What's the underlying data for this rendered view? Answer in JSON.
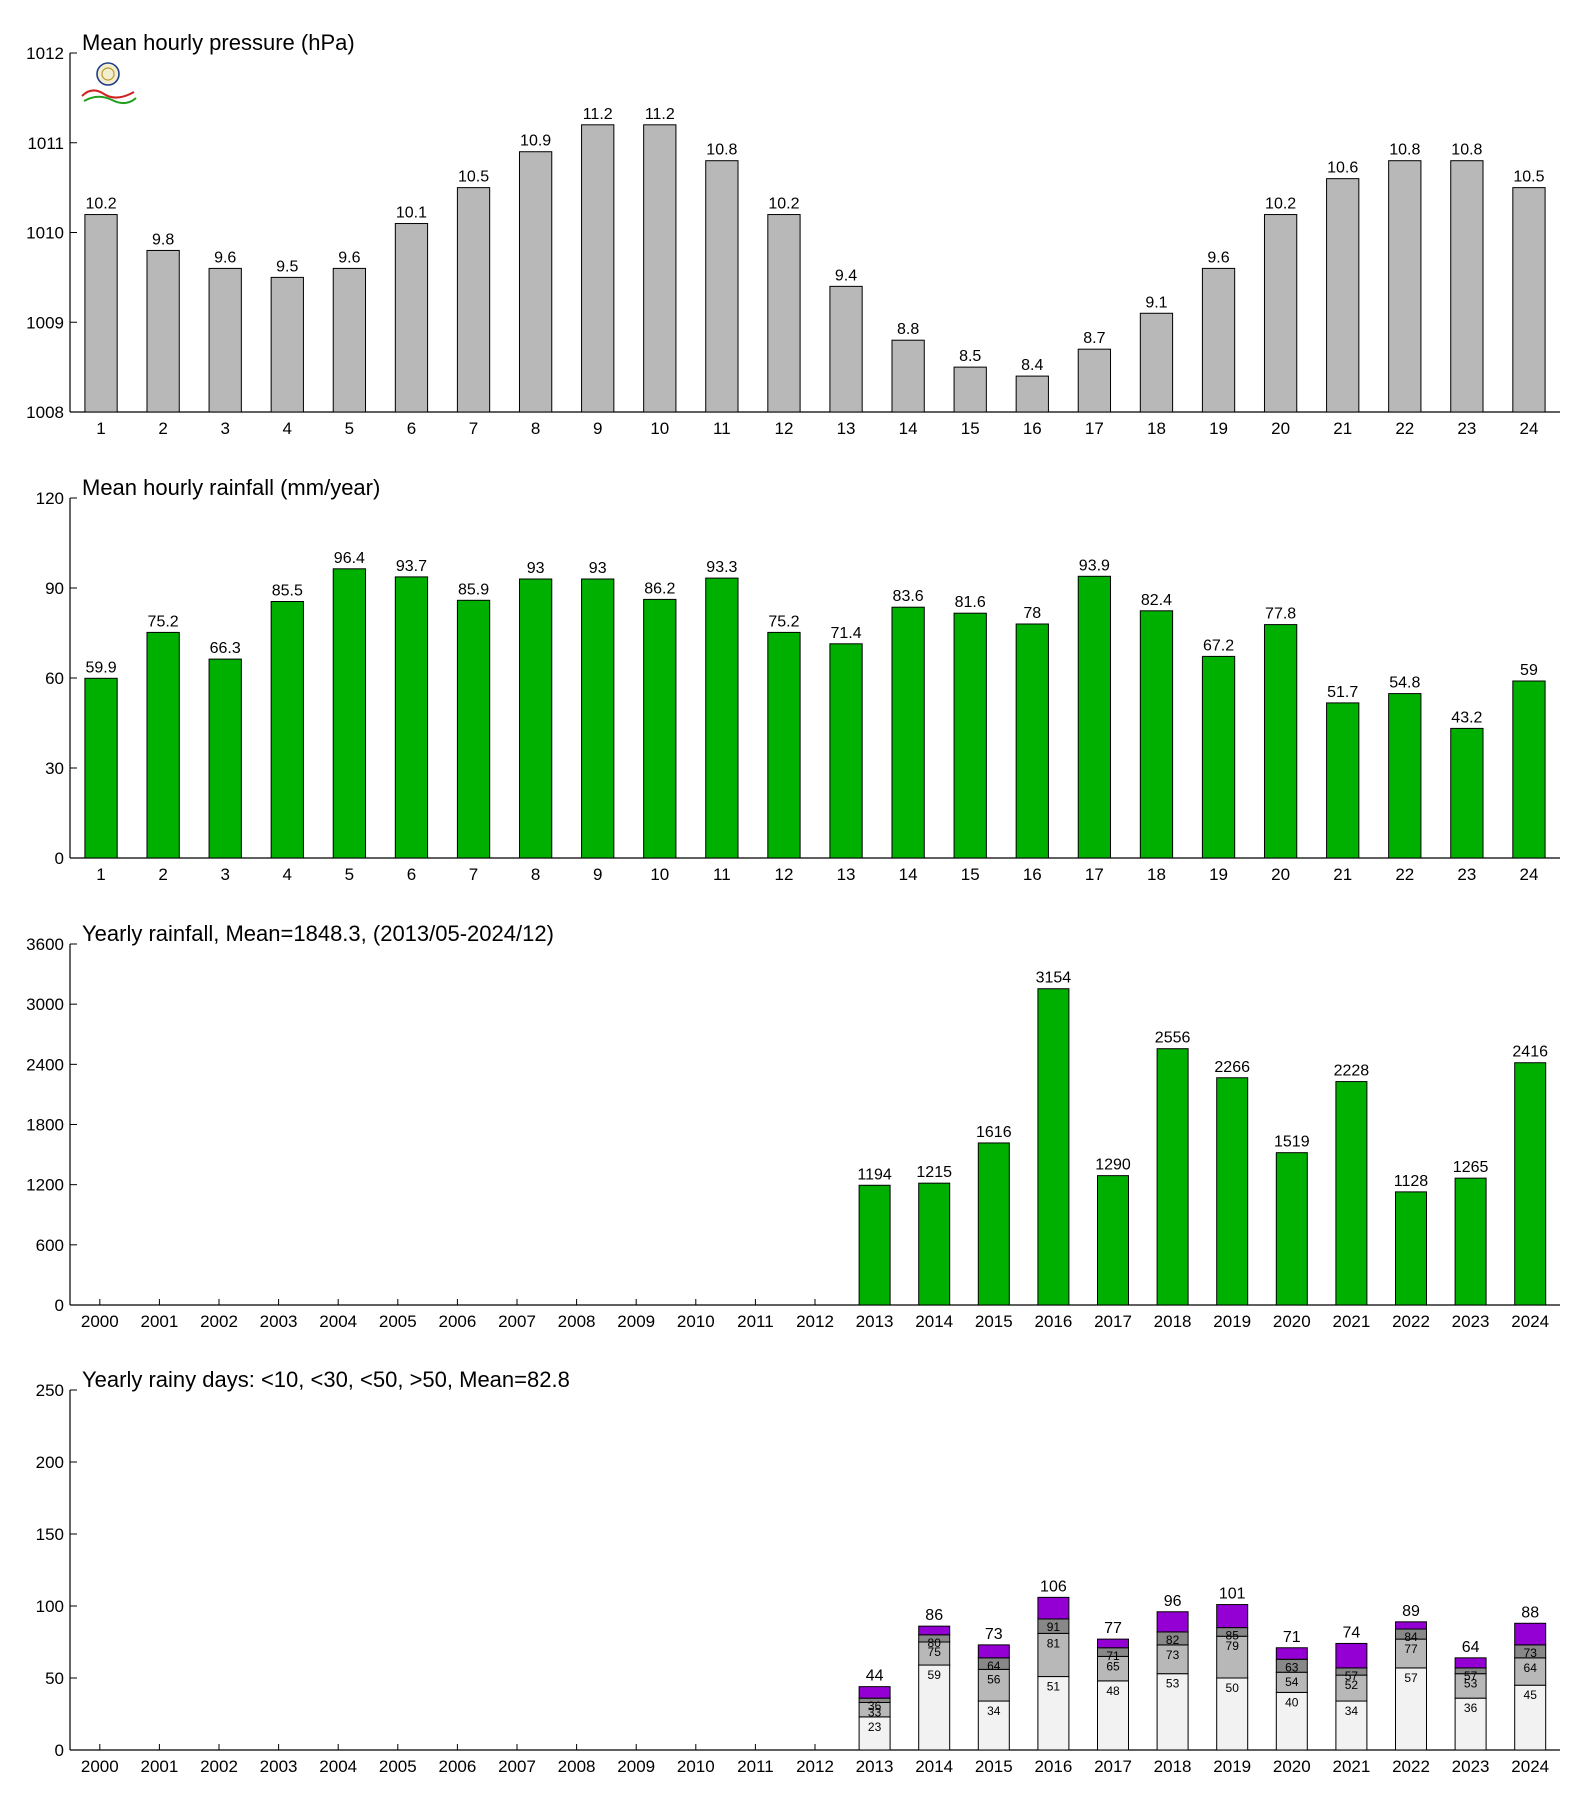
{
  "chart_data": [
    {
      "type": "bar",
      "title": "Mean hourly pressure (hPa)",
      "categories": [
        "1",
        "2",
        "3",
        "4",
        "5",
        "6",
        "7",
        "8",
        "9",
        "10",
        "11",
        "12",
        "13",
        "14",
        "15",
        "16",
        "17",
        "18",
        "19",
        "20",
        "21",
        "22",
        "23",
        "24"
      ],
      "values": [
        1010.2,
        1009.8,
        1009.6,
        1009.5,
        1009.6,
        1010.1,
        1010.5,
        1010.9,
        1011.2,
        1011.2,
        1010.8,
        1010.2,
        1009.4,
        1008.8,
        1008.5,
        1008.4,
        1008.7,
        1009.1,
        1009.6,
        1010.2,
        1010.6,
        1010.8,
        1010.8,
        1010.5
      ],
      "labels": [
        "10.2",
        "9.8",
        "9.6",
        "9.5",
        "9.6",
        "10.1",
        "10.5",
        "10.9",
        "11.2",
        "11.2",
        "10.8",
        "10.2",
        "9.4",
        "8.8",
        "8.5",
        "8.4",
        "8.7",
        "9.1",
        "9.6",
        "10.2",
        "10.6",
        "10.8",
        "10.8",
        "10.5"
      ],
      "ylim": [
        1008,
        1012
      ],
      "yticks": [
        1008,
        1009,
        1010,
        1011,
        1012
      ],
      "color": "#b8b8b8",
      "xlabel": "",
      "ylabel": ""
    },
    {
      "type": "bar",
      "title": "Mean hourly rainfall (mm/year)",
      "categories": [
        "1",
        "2",
        "3",
        "4",
        "5",
        "6",
        "7",
        "8",
        "9",
        "10",
        "11",
        "12",
        "13",
        "14",
        "15",
        "16",
        "17",
        "18",
        "19",
        "20",
        "21",
        "22",
        "23",
        "24"
      ],
      "values": [
        59.9,
        75.2,
        66.3,
        85.5,
        96.4,
        93.7,
        85.9,
        93,
        93,
        86.2,
        93.3,
        75.2,
        71.4,
        83.6,
        81.6,
        78,
        93.9,
        82.4,
        67.2,
        77.8,
        51.7,
        54.8,
        43.2,
        59
      ],
      "labels": [
        "59.9",
        "75.2",
        "66.3",
        "85.5",
        "96.4",
        "93.7",
        "85.9",
        "93",
        "93",
        "86.2",
        "93.3",
        "75.2",
        "71.4",
        "83.6",
        "81.6",
        "78",
        "93.9",
        "82.4",
        "67.2",
        "77.8",
        "51.7",
        "54.8",
        "43.2",
        "59"
      ],
      "ylim": [
        0,
        120
      ],
      "yticks": [
        0,
        30,
        60,
        90,
        120
      ],
      "color": "#00b000",
      "xlabel": "",
      "ylabel": ""
    },
    {
      "type": "bar",
      "title": "Yearly rainfall, Mean=1848.3, (2013/05-2024/12)",
      "categories": [
        "2000",
        "2001",
        "2002",
        "2003",
        "2004",
        "2005",
        "2006",
        "2007",
        "2008",
        "2009",
        "2010",
        "2011",
        "2012",
        "2013",
        "2014",
        "2015",
        "2016",
        "2017",
        "2018",
        "2019",
        "2020",
        "2021",
        "2022",
        "2023",
        "2024"
      ],
      "values": [
        null,
        null,
        null,
        null,
        null,
        null,
        null,
        null,
        null,
        null,
        null,
        null,
        null,
        1194,
        1215,
        1616,
        3154,
        1290,
        2556,
        2266,
        1519,
        2228,
        1128,
        1265,
        2416
      ],
      "labels": [
        "",
        "",
        "",
        "",
        "",
        "",
        "",
        "",
        "",
        "",
        "",
        "",
        "",
        "1194",
        "1215",
        "1616",
        "3154",
        "1290",
        "2556",
        "2266",
        "1519",
        "2228",
        "1128",
        "1265",
        "2416"
      ],
      "ylim": [
        0,
        3600
      ],
      "yticks": [
        0,
        600,
        1200,
        1800,
        2400,
        3000,
        3600
      ],
      "color": "#00b000",
      "xlabel": "",
      "ylabel": ""
    },
    {
      "type": "bar",
      "stacked": true,
      "title": "Yearly rainy days: <10, <30, <50, >50, Mean=82.8",
      "categories": [
        "2000",
        "2001",
        "2002",
        "2003",
        "2004",
        "2005",
        "2006",
        "2007",
        "2008",
        "2009",
        "2010",
        "2011",
        "2012",
        "2013",
        "2014",
        "2015",
        "2016",
        "2017",
        "2018",
        "2019",
        "2020",
        "2021",
        "2022",
        "2023",
        "2024"
      ],
      "cumulative": {
        "lt10": [
          null,
          null,
          null,
          null,
          null,
          null,
          null,
          null,
          null,
          null,
          null,
          null,
          null,
          23,
          59,
          34,
          51,
          48,
          53,
          50,
          40,
          34,
          57,
          36,
          45
        ],
        "lt30": [
          null,
          null,
          null,
          null,
          null,
          null,
          null,
          null,
          null,
          null,
          null,
          null,
          null,
          33,
          75,
          56,
          81,
          65,
          73,
          79,
          54,
          52,
          77,
          53,
          64
        ],
        "lt50": [
          null,
          null,
          null,
          null,
          null,
          null,
          null,
          null,
          null,
          null,
          null,
          null,
          null,
          36,
          80,
          64,
          91,
          71,
          82,
          85,
          63,
          57,
          84,
          57,
          73
        ],
        "total": [
          null,
          null,
          null,
          null,
          null,
          null,
          null,
          null,
          null,
          null,
          null,
          null,
          null,
          44,
          86,
          73,
          106,
          77,
          96,
          101,
          71,
          74,
          89,
          64,
          88
        ]
      },
      "colors": {
        "lt10": "#f2f2f2",
        "lt30": "#b8b8b8",
        "lt50": "#888888",
        "gt50": "#9400d3"
      },
      "ylim": [
        0,
        250
      ],
      "yticks": [
        0,
        50,
        100,
        150,
        200,
        250
      ],
      "xlabel": "",
      "ylabel": ""
    }
  ]
}
